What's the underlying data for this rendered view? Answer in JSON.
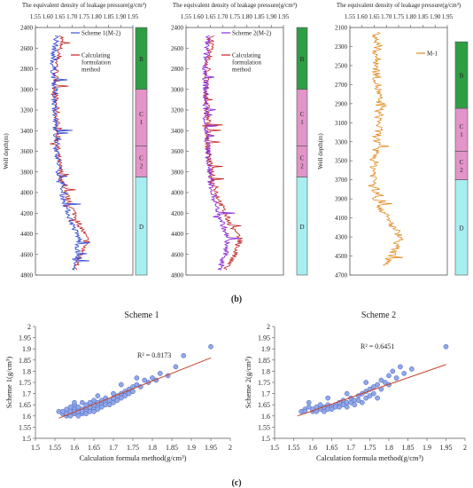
{
  "figure_labels": {
    "b": "(b)",
    "c": "(c)"
  },
  "chart_data": [
    {
      "type": "line",
      "title": "The equivalent density of leakage pressure(g/cm³)",
      "ylabel": "Well depth(m)",
      "x_axis_position": "top",
      "xlim": [
        1.55,
        1.95
      ],
      "x_ticks": [
        "1.55",
        "1.60",
        "1.65",
        "1.70",
        "1.75",
        "1.80",
        "1.85",
        "1.90",
        "1.95"
      ],
      "ylim": [
        2400,
        4800
      ],
      "y_inverted": true,
      "y_ticks": [
        "2400",
        "2600",
        "2800",
        "3000",
        "3200",
        "3400",
        "3600",
        "3800",
        "4000",
        "4200",
        "4400",
        "4600",
        "4800"
      ],
      "series": [
        {
          "name": "Scheme 1(M-2)",
          "color": "#3a4fd6",
          "trend": [
            [
              2480,
              1.64
            ],
            [
              2700,
              1.62
            ],
            [
              3000,
              1.63
            ],
            [
              3300,
              1.63
            ],
            [
              3600,
              1.64
            ],
            [
              3900,
              1.65
            ],
            [
              4100,
              1.67
            ],
            [
              4300,
              1.7
            ],
            [
              4450,
              1.73
            ],
            [
              4600,
              1.72
            ],
            [
              4750,
              1.7
            ]
          ]
        },
        {
          "name": "Calculating formulation method",
          "color": "#c0201e",
          "trend": [
            [
              2480,
              1.66
            ],
            [
              2700,
              1.64
            ],
            [
              3000,
              1.63
            ],
            [
              3300,
              1.64
            ],
            [
              3600,
              1.64
            ],
            [
              3900,
              1.66
            ],
            [
              4100,
              1.69
            ],
            [
              4300,
              1.73
            ],
            [
              4450,
              1.76
            ],
            [
              4600,
              1.74
            ],
            [
              4750,
              1.71
            ]
          ]
        }
      ],
      "formations": [
        {
          "label": "B",
          "from": 2400,
          "to": 3000,
          "color": "#2e9e44"
        },
        {
          "label": "C 1",
          "from": 3000,
          "to": 3550,
          "color": "#e394c8"
        },
        {
          "label": "C 2",
          "from": 3550,
          "to": 3850,
          "color": "#e394c8"
        },
        {
          "label": "D",
          "from": 3850,
          "to": 4800,
          "color": "#a7eef0"
        }
      ]
    },
    {
      "type": "line",
      "title": "The equivalent density of leakage pressure(g/cm³)",
      "x_axis_position": "top",
      "xlim": [
        1.55,
        1.95
      ],
      "x_ticks": [
        "1.55",
        "1.60",
        "1.65",
        "1.70",
        "1.75",
        "1.80",
        "1.85",
        "1.90",
        "1.95"
      ],
      "ylim": [
        2400,
        4800
      ],
      "y_inverted": true,
      "y_ticks": [
        "2400",
        "2600",
        "2800",
        "3000",
        "3200",
        "3400",
        "3600",
        "3800",
        "4000",
        "4200",
        "4400",
        "4600",
        "4800"
      ],
      "series": [
        {
          "name": "Scheme 2(M-2)",
          "color": "#8a2bd8",
          "trend": [
            [
              2480,
              1.64
            ],
            [
              2700,
              1.63
            ],
            [
              3000,
              1.63
            ],
            [
              3300,
              1.63
            ],
            [
              3600,
              1.64
            ],
            [
              3900,
              1.65
            ],
            [
              4100,
              1.67
            ],
            [
              4300,
              1.7
            ],
            [
              4450,
              1.72
            ],
            [
              4600,
              1.71
            ],
            [
              4750,
              1.69
            ]
          ]
        },
        {
          "name": "Calculating formulation method",
          "color": "#c0201e",
          "trend": [
            [
              2480,
              1.66
            ],
            [
              2700,
              1.64
            ],
            [
              3000,
              1.63
            ],
            [
              3300,
              1.64
            ],
            [
              3600,
              1.64
            ],
            [
              3900,
              1.66
            ],
            [
              4100,
              1.69
            ],
            [
              4300,
              1.73
            ],
            [
              4450,
              1.77
            ],
            [
              4600,
              1.75
            ],
            [
              4750,
              1.71
            ]
          ]
        }
      ],
      "formations": [
        {
          "label": "B",
          "from": 2400,
          "to": 3000,
          "color": "#2e9e44"
        },
        {
          "label": "C 1",
          "from": 3000,
          "to": 3550,
          "color": "#e394c8"
        },
        {
          "label": "C 2",
          "from": 3550,
          "to": 3850,
          "color": "#e394c8"
        },
        {
          "label": "D",
          "from": 3850,
          "to": 4800,
          "color": "#a7eef0"
        }
      ]
    },
    {
      "type": "line",
      "title": "The equivalent density of leakage pressure(g/cm³)",
      "ylabel": "Well depth(m)",
      "x_axis_position": "top",
      "xlim": [
        1.55,
        1.95
      ],
      "x_ticks": [
        "1.55",
        "1.60",
        "1.65",
        "1.70",
        "1.75",
        "1.80",
        "1.85",
        "1.90",
        "1.95"
      ],
      "ylim": [
        2100,
        4700
      ],
      "y_inverted": true,
      "y_ticks": [
        "2100",
        "2300",
        "2500",
        "2700",
        "2900",
        "3100",
        "3300",
        "3500",
        "3700",
        "3900",
        "4100",
        "4300",
        "4500",
        "4700"
      ],
      "series": [
        {
          "name": "M-1",
          "color": "#e08a1e",
          "trend": [
            [
              2150,
              1.66
            ],
            [
              2300,
              1.66
            ],
            [
              2400,
              1.66
            ],
            [
              2600,
              1.66
            ],
            [
              2900,
              1.67
            ],
            [
              3100,
              1.67
            ],
            [
              3300,
              1.66
            ],
            [
              3500,
              1.65
            ],
            [
              3700,
              1.65
            ],
            [
              3900,
              1.66
            ],
            [
              4100,
              1.7
            ],
            [
              4300,
              1.76
            ],
            [
              4450,
              1.73
            ],
            [
              4600,
              1.7
            ]
          ]
        }
      ],
      "formations": [
        {
          "label": "B",
          "from": 2250,
          "to": 2950,
          "color": "#2e9e44"
        },
        {
          "label": "C 1",
          "from": 2950,
          "to": 3400,
          "color": "#e394c8"
        },
        {
          "label": "C 2",
          "from": 3400,
          "to": 3700,
          "color": "#e394c8"
        },
        {
          "label": "D",
          "from": 3700,
          "to": 4700,
          "color": "#a7eef0"
        }
      ]
    },
    {
      "type": "scatter",
      "title": "Scheme 1",
      "xlabel": "Calculation formula method(g/cm³)",
      "ylabel": "Scheme 1(g/cm³)",
      "xlim": [
        1.5,
        2.0
      ],
      "ylim": [
        1.5,
        2.0
      ],
      "x_ticks": [
        "1.5",
        "1.55",
        "1.6",
        "1.65",
        "1.7",
        "1.75",
        "1.8",
        "1.85",
        "1.9",
        "1.95",
        "2"
      ],
      "y_ticks": [
        "1.5",
        "1.55",
        "1.6",
        "1.65",
        "1.7",
        "1.75",
        "1.8",
        "1.85",
        "1.9",
        "1.95",
        "2"
      ],
      "r2_label": "R² = 0.8173",
      "fit_line": [
        [
          1.56,
          1.59
        ],
        [
          1.95,
          1.86
        ]
      ],
      "points": [
        [
          1.57,
          1.61
        ],
        [
          1.57,
          1.62
        ],
        [
          1.58,
          1.6
        ],
        [
          1.58,
          1.63
        ],
        [
          1.58,
          1.61
        ],
        [
          1.59,
          1.62
        ],
        [
          1.59,
          1.6
        ],
        [
          1.59,
          1.64
        ],
        [
          1.6,
          1.61
        ],
        [
          1.6,
          1.63
        ],
        [
          1.6,
          1.62
        ],
        [
          1.6,
          1.65
        ],
        [
          1.61,
          1.6
        ],
        [
          1.61,
          1.62
        ],
        [
          1.61,
          1.64
        ],
        [
          1.62,
          1.61
        ],
        [
          1.62,
          1.63
        ],
        [
          1.62,
          1.66
        ],
        [
          1.62,
          1.62
        ],
        [
          1.63,
          1.62
        ],
        [
          1.63,
          1.64
        ],
        [
          1.63,
          1.61
        ],
        [
          1.63,
          1.65
        ],
        [
          1.64,
          1.63
        ],
        [
          1.64,
          1.62
        ],
        [
          1.64,
          1.66
        ],
        [
          1.64,
          1.64
        ],
        [
          1.65,
          1.63
        ],
        [
          1.65,
          1.65
        ],
        [
          1.65,
          1.62
        ],
        [
          1.65,
          1.67
        ],
        [
          1.66,
          1.64
        ],
        [
          1.66,
          1.66
        ],
        [
          1.66,
          1.63
        ],
        [
          1.67,
          1.65
        ],
        [
          1.67,
          1.67
        ],
        [
          1.67,
          1.64
        ],
        [
          1.68,
          1.66
        ],
        [
          1.68,
          1.65
        ],
        [
          1.68,
          1.68
        ],
        [
          1.69,
          1.67
        ],
        [
          1.69,
          1.65
        ],
        [
          1.7,
          1.68
        ],
        [
          1.7,
          1.66
        ],
        [
          1.7,
          1.7
        ],
        [
          1.71,
          1.69
        ],
        [
          1.71,
          1.67
        ],
        [
          1.72,
          1.7
        ],
        [
          1.72,
          1.68
        ],
        [
          1.73,
          1.71
        ],
        [
          1.73,
          1.69
        ],
        [
          1.74,
          1.72
        ],
        [
          1.74,
          1.7
        ],
        [
          1.75,
          1.73
        ],
        [
          1.75,
          1.71
        ],
        [
          1.76,
          1.74
        ],
        [
          1.77,
          1.73
        ],
        [
          1.78,
          1.76
        ],
        [
          1.79,
          1.75
        ],
        [
          1.8,
          1.77
        ],
        [
          1.81,
          1.76
        ],
        [
          1.82,
          1.79
        ],
        [
          1.84,
          1.78
        ],
        [
          1.86,
          1.82
        ],
        [
          1.88,
          1.87
        ],
        [
          1.95,
          1.91
        ],
        [
          1.56,
          1.62
        ],
        [
          1.6,
          1.66
        ],
        [
          1.66,
          1.69
        ],
        [
          1.72,
          1.74
        ],
        [
          1.76,
          1.77
        ]
      ]
    },
    {
      "type": "scatter",
      "title": "Scheme 2",
      "xlabel": "Calculation formula method(g/cm³)",
      "ylabel": "Scheme 2(g/cm³)",
      "xlim": [
        1.5,
        2.0
      ],
      "ylim": [
        1.5,
        2.0
      ],
      "x_ticks": [
        "1.5",
        "1.55",
        "1.6",
        "1.65",
        "1.7",
        "1.75",
        "1.8",
        "1.85",
        "1.9",
        "1.95",
        "2"
      ],
      "y_ticks": [
        "1.5",
        "1.55",
        "1.6",
        "1.65",
        "1.7",
        "1.75",
        "1.8",
        "1.85",
        "1.9",
        "1.95",
        "2"
      ],
      "r2_label": "R² = 0.6451",
      "fit_line": [
        [
          1.56,
          1.6
        ],
        [
          1.95,
          1.83
        ]
      ],
      "points": [
        [
          1.57,
          1.62
        ],
        [
          1.58,
          1.63
        ],
        [
          1.58,
          1.62
        ],
        [
          1.59,
          1.64
        ],
        [
          1.6,
          1.62
        ],
        [
          1.6,
          1.63
        ],
        [
          1.61,
          1.64
        ],
        [
          1.61,
          1.62
        ],
        [
          1.62,
          1.63
        ],
        [
          1.62,
          1.65
        ],
        [
          1.63,
          1.62
        ],
        [
          1.63,
          1.64
        ],
        [
          1.64,
          1.63
        ],
        [
          1.64,
          1.65
        ],
        [
          1.65,
          1.64
        ],
        [
          1.65,
          1.63
        ],
        [
          1.66,
          1.65
        ],
        [
          1.66,
          1.64
        ],
        [
          1.67,
          1.66
        ],
        [
          1.67,
          1.64
        ],
        [
          1.68,
          1.65
        ],
        [
          1.68,
          1.67
        ],
        [
          1.69,
          1.66
        ],
        [
          1.69,
          1.64
        ],
        [
          1.7,
          1.66
        ],
        [
          1.7,
          1.68
        ],
        [
          1.71,
          1.67
        ],
        [
          1.71,
          1.65
        ],
        [
          1.72,
          1.69
        ],
        [
          1.72,
          1.67
        ],
        [
          1.73,
          1.7
        ],
        [
          1.73,
          1.66
        ],
        [
          1.74,
          1.71
        ],
        [
          1.74,
          1.68
        ],
        [
          1.75,
          1.72
        ],
        [
          1.75,
          1.69
        ],
        [
          1.76,
          1.73
        ],
        [
          1.76,
          1.7
        ],
        [
          1.77,
          1.74
        ],
        [
          1.78,
          1.72
        ],
        [
          1.78,
          1.76
        ],
        [
          1.79,
          1.75
        ],
        [
          1.8,
          1.78
        ],
        [
          1.8,
          1.74
        ],
        [
          1.81,
          1.8
        ],
        [
          1.82,
          1.77
        ],
        [
          1.83,
          1.82
        ],
        [
          1.84,
          1.79
        ],
        [
          1.86,
          1.81
        ],
        [
          1.95,
          1.91
        ],
        [
          1.59,
          1.66
        ],
        [
          1.64,
          1.68
        ],
        [
          1.69,
          1.7
        ],
        [
          1.74,
          1.75
        ],
        [
          1.77,
          1.68
        ]
      ]
    }
  ]
}
